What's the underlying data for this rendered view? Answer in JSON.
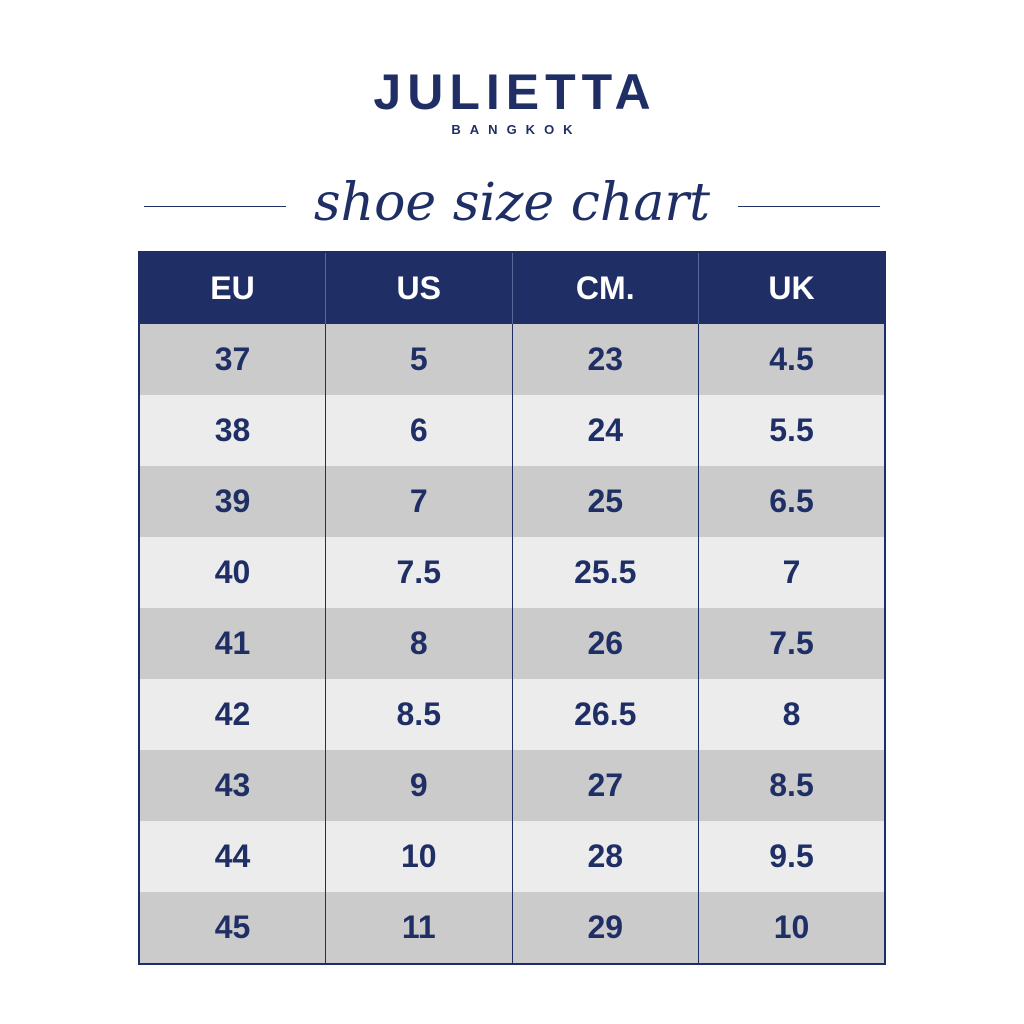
{
  "brand": {
    "name": "JULIETTA",
    "subtitle": "BANGKOK"
  },
  "title": "shoe size chart",
  "colors": {
    "navy": "#1f2f66",
    "row_dark": "#cbcbcb",
    "row_light": "#ececec",
    "header_text": "#ffffff"
  },
  "table": {
    "headers": [
      "EU",
      "US",
      "CM.",
      "UK"
    ],
    "rows": [
      [
        "37",
        "5",
        "23",
        "4.5"
      ],
      [
        "38",
        "6",
        "24",
        "5.5"
      ],
      [
        "39",
        "7",
        "25",
        "6.5"
      ],
      [
        "40",
        "7.5",
        "25.5",
        "7"
      ],
      [
        "41",
        "8",
        "26",
        "7.5"
      ],
      [
        "42",
        "8.5",
        "26.5",
        "8"
      ],
      [
        "43",
        "9",
        "27",
        "8.5"
      ],
      [
        "44",
        "10",
        "28",
        "9.5"
      ],
      [
        "45",
        "11",
        "29",
        "10"
      ]
    ]
  }
}
